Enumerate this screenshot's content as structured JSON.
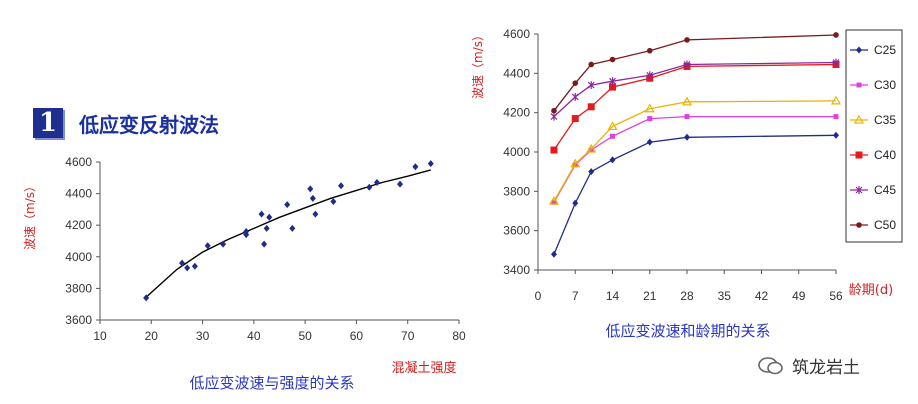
{
  "heading": {
    "number": "1",
    "title": "低应变反射波法"
  },
  "watermark": {
    "text": "筑龙岩土"
  },
  "chart_data": [
    {
      "type": "scatter",
      "title": "",
      "caption": "低应变波速与强度的关系",
      "xlabel": "混凝土强度",
      "ylabel": "波速（m/s）",
      "xlim": [
        10,
        80
      ],
      "ylim": [
        3600,
        4600
      ],
      "xticks": [
        10,
        20,
        30,
        40,
        50,
        60,
        70,
        80
      ],
      "yticks": [
        3600,
        3800,
        4000,
        4200,
        4400,
        4600
      ],
      "points": [
        [
          19,
          3740
        ],
        [
          26,
          3960
        ],
        [
          27,
          3930
        ],
        [
          28.5,
          3940
        ],
        [
          31,
          4070
        ],
        [
          34,
          4080
        ],
        [
          38.5,
          4140
        ],
        [
          38.5,
          4160
        ],
        [
          41.5,
          4270
        ],
        [
          42,
          4080
        ],
        [
          42.5,
          4180
        ],
        [
          43,
          4250
        ],
        [
          46.5,
          4330
        ],
        [
          47.5,
          4180
        ],
        [
          51,
          4430
        ],
        [
          51.5,
          4370
        ],
        [
          52,
          4270
        ],
        [
          55.5,
          4350
        ],
        [
          57,
          4450
        ],
        [
          62.5,
          4440
        ],
        [
          64,
          4470
        ],
        [
          68.5,
          4460
        ],
        [
          71.5,
          4570
        ],
        [
          74.5,
          4590
        ]
      ],
      "trend": [
        [
          19,
          3745
        ],
        [
          25,
          3920
        ],
        [
          30,
          4030
        ],
        [
          35,
          4110
        ],
        [
          40,
          4180
        ],
        [
          45,
          4250
        ],
        [
          50,
          4310
        ],
        [
          55,
          4370
        ],
        [
          60,
          4420
        ],
        [
          65,
          4470
        ],
        [
          70,
          4510
        ],
        [
          74.5,
          4550
        ]
      ]
    },
    {
      "type": "line",
      "title": "",
      "caption": "低应变波速和龄期的关系",
      "xlabel": "龄期(d)",
      "ylabel": "波速（m/s）",
      "xlim": [
        0,
        56
      ],
      "ylim": [
        3400,
        4600
      ],
      "xticks": [
        0,
        7,
        14,
        21,
        28,
        35,
        42,
        49,
        56
      ],
      "yticks": [
        3400,
        3600,
        3800,
        4000,
        4200,
        4400,
        4600
      ],
      "x": [
        3,
        7,
        10,
        14,
        21,
        28,
        56
      ],
      "series": [
        {
          "name": "C25",
          "color": "#1f2d8a",
          "marker": "diamond",
          "values": [
            3480,
            3740,
            3900,
            3960,
            4050,
            4075,
            4085
          ]
        },
        {
          "name": "C30",
          "color": "#e040e0",
          "marker": "square",
          "values": [
            3745,
            3935,
            4010,
            4080,
            4170,
            4180,
            4180
          ]
        },
        {
          "name": "C35",
          "color": "#e8b400",
          "marker": "triangle",
          "values": [
            3750,
            3940,
            4015,
            4130,
            4220,
            4255,
            4260
          ]
        },
        {
          "name": "C40",
          "color": "#e61a1a",
          "marker": "bigsquare",
          "values": [
            4010,
            4170,
            4230,
            4330,
            4375,
            4435,
            4445
          ]
        },
        {
          "name": "C45",
          "color": "#8a2a9a",
          "marker": "star",
          "values": [
            4180,
            4280,
            4340,
            4360,
            4390,
            4445,
            4455
          ]
        },
        {
          "name": "C50",
          "color": "#7a1a1a",
          "marker": "circle",
          "values": [
            4210,
            4350,
            4445,
            4470,
            4515,
            4570,
            4595
          ]
        }
      ]
    }
  ]
}
